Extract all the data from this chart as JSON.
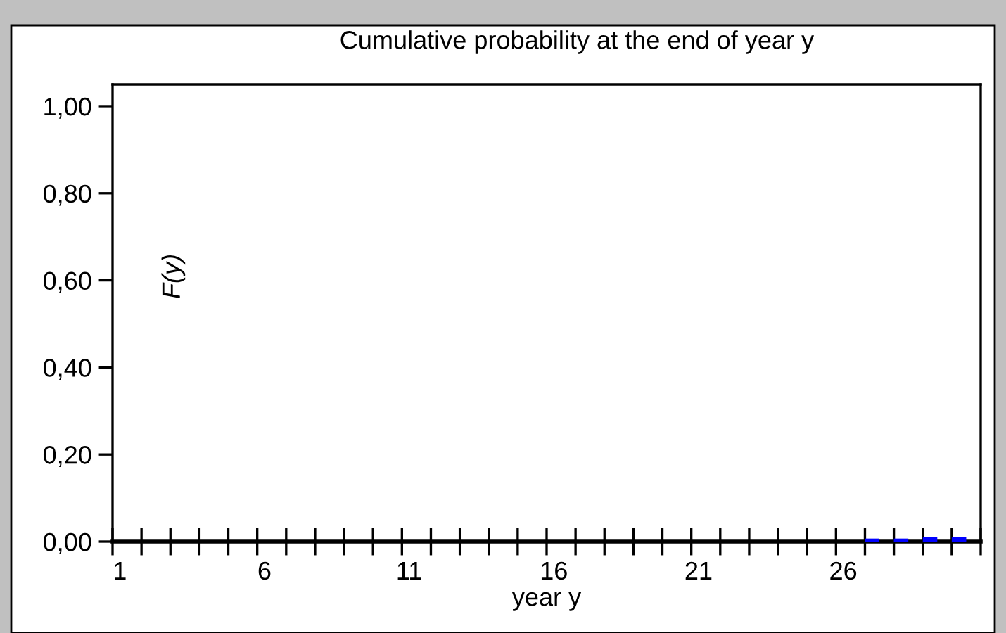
{
  "chart_data": {
    "type": "bar",
    "title": "Cumulative probability at the end of year y",
    "xlabel": "year y",
    "ylabel": "F(y)",
    "categories": [
      "1",
      null,
      null,
      null,
      null,
      "6",
      null,
      null,
      null,
      null,
      "11",
      null,
      null,
      null,
      null,
      "16",
      null,
      null,
      null,
      null,
      "21",
      null,
      null,
      null,
      null,
      "26",
      null,
      null,
      null,
      null
    ],
    "values": [
      0,
      0,
      0,
      0,
      0,
      0,
      0,
      0,
      0,
      0,
      0,
      0,
      0,
      0,
      0,
      0,
      0,
      0,
      0,
      0,
      0,
      0,
      0,
      0,
      0,
      0,
      0.007,
      0.007,
      0.011,
      0.011
    ],
    "color": "#0000ff",
    "ylim": [
      0,
      1.05
    ],
    "yticks": [
      {
        "value": 0,
        "label": "0,00"
      },
      {
        "value": 0.2,
        "label": "0,20"
      },
      {
        "value": 0.4,
        "label": "0,40"
      },
      {
        "value": 0.6,
        "label": "0,60"
      },
      {
        "value": 0.8,
        "label": "0,80"
      },
      {
        "value": 1.0,
        "label": "1,00"
      }
    ],
    "grid": false,
    "legend": false
  }
}
